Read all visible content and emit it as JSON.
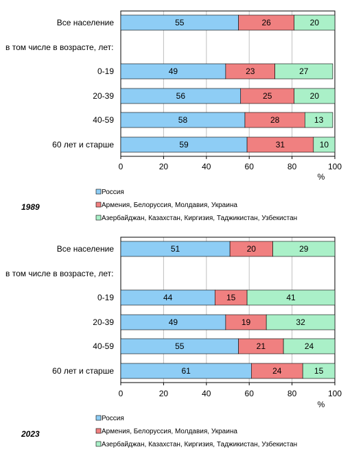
{
  "colors": {
    "russia": "#8ECDF5",
    "armenia": "#F08080",
    "azerbaijan": "#AAF0C8",
    "grid": "#C0C0C0",
    "axis": "#000000"
  },
  "chart_data": [
    {
      "type": "bar",
      "orientation": "horizontal",
      "stacked": true,
      "year_label": "1989",
      "categories": [
        "Все население",
        "в том числе в возрасте, лет:",
        "0-19",
        "20-39",
        "40-59",
        "60 лет и старше"
      ],
      "series": [
        {
          "name": "Россия",
          "values": [
            55,
            null,
            49,
            56,
            58,
            59
          ]
        },
        {
          "name": "Армения, Белоруссия, Молдавия, Украина",
          "values": [
            26,
            null,
            23,
            25,
            28,
            31
          ]
        },
        {
          "name": "Азербайджан, Казахстан, Киргизия, Таджикистан, Узбекистан",
          "values": [
            20,
            null,
            27,
            20,
            13,
            10
          ]
        }
      ],
      "xlim": [
        0,
        100
      ],
      "xticks": [
        "0",
        "20",
        "40",
        "60",
        "80",
        "100"
      ],
      "xlabel": "%",
      "grid": "vertical",
      "legend_position": "bottom-left"
    },
    {
      "type": "bar",
      "orientation": "horizontal",
      "stacked": true,
      "year_label": "2023",
      "categories": [
        "Все население",
        "в том числе в возрасте, лет:",
        "0-19",
        "20-39",
        "40-59",
        "60 лет и старше"
      ],
      "series": [
        {
          "name": "Россия",
          "values": [
            51,
            null,
            44,
            49,
            55,
            61
          ]
        },
        {
          "name": "Армения, Белоруссия, Молдавия, Украина",
          "values": [
            20,
            null,
            15,
            19,
            21,
            24
          ]
        },
        {
          "name": "Азербайджан, Казахстан, Киргизия, Таджикистан, Узбекистан",
          "values": [
            29,
            null,
            41,
            32,
            24,
            15
          ]
        }
      ],
      "xlim": [
        0,
        100
      ],
      "xticks": [
        "0",
        "20",
        "40",
        "60",
        "80",
        "100"
      ],
      "xlabel": "%",
      "grid": "vertical",
      "legend_position": "bottom-left"
    }
  ]
}
